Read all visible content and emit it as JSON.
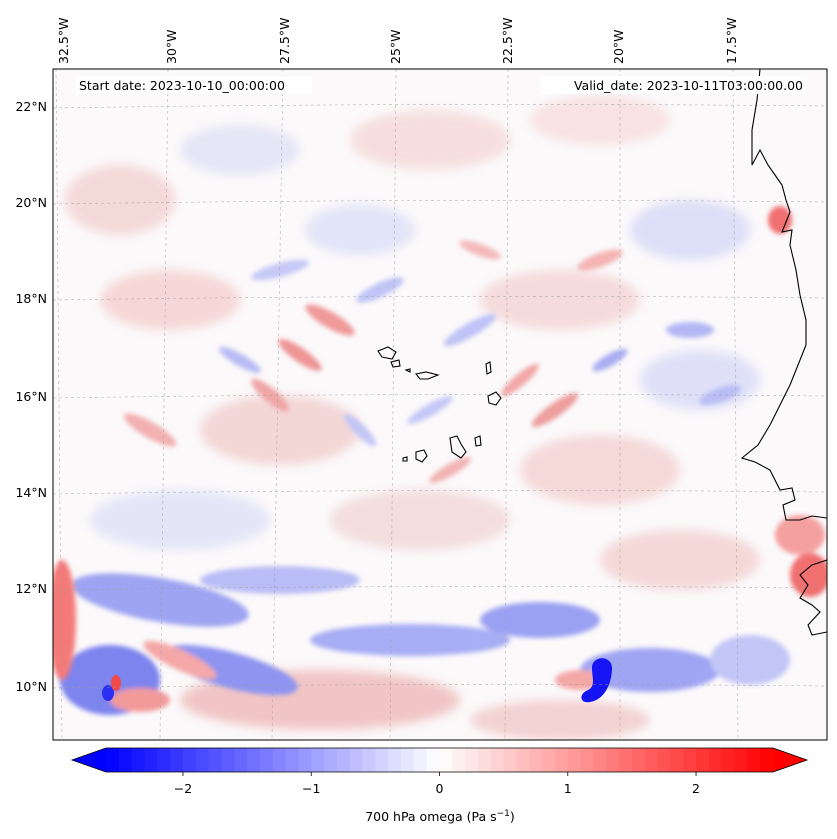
{
  "map": {
    "start_date": "Start date: 2023-10-10_00:00:00",
    "valid_date": "Valid_date: 2023-10-11T03:00:00.00",
    "lon_labels": [
      "32.5°W",
      "30°W",
      "27.5°W",
      "25°W",
      "22.5°W",
      "20°W",
      "17.5°W"
    ],
    "lat_labels": [
      "22°N",
      "20°N",
      "18°N",
      "16°N",
      "14°N",
      "12°N",
      "10°N"
    ],
    "field": "700 hPa omega",
    "grid_lines": true
  },
  "colorbar": {
    "label": "700 hPa omega (Pa s",
    "label_exp": "−1",
    "label_close": ")",
    "ticks": [
      "−2",
      "−1",
      "0",
      "1",
      "2"
    ],
    "tick_values": [
      -2,
      -1,
      0,
      1,
      2
    ],
    "range": [
      -2.6,
      2.6
    ],
    "extend": "both",
    "colormap": "bwr",
    "colors": {
      "low": "#0000ff",
      "mid": "#ffffff",
      "high": "#ff0000"
    }
  }
}
